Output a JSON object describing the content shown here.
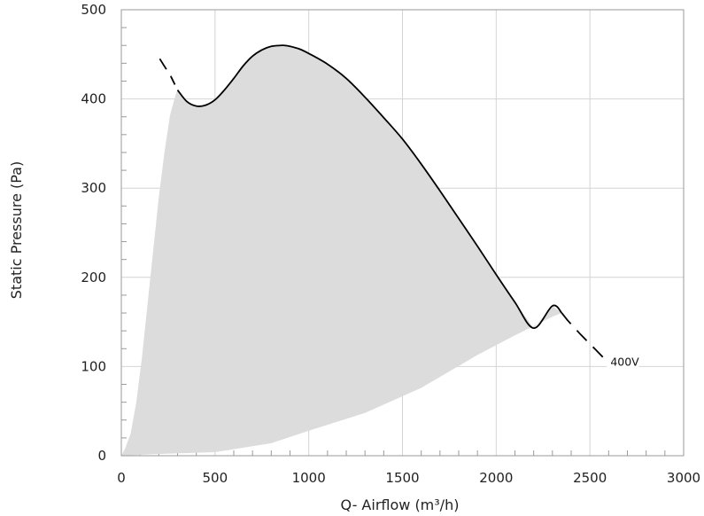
{
  "chart_data": {
    "type": "line",
    "xlabel": "Q- Airflow (m³/h)",
    "ylabel": "Static Pressure (Pa)",
    "xlim": [
      0,
      3000
    ],
    "ylim": [
      0,
      500
    ],
    "x_ticks": [
      "0",
      "500",
      "1000",
      "1500",
      "2000",
      "2500",
      "3000"
    ],
    "y_ticks": [
      "0",
      "100",
      "200",
      "300",
      "400",
      "500"
    ],
    "grid": true,
    "colors": {
      "curve": "#000000",
      "operating_area": "#dcdcdc",
      "grid": "#d4d4d4",
      "frame": "#999999"
    },
    "series": [
      {
        "name": "400V",
        "solid": {
          "x": [
            300,
            350,
            400,
            450,
            500,
            550,
            600,
            650,
            700,
            750,
            800,
            850,
            870,
            900,
            950,
            1000,
            1100,
            1200,
            1300,
            1400,
            1500,
            1600,
            1700,
            1800,
            1900,
            2000,
            2100,
            2200,
            2300,
            2350
          ],
          "y": [
            410,
            397,
            392,
            393,
            399,
            410,
            423,
            437,
            448,
            455,
            459,
            460,
            460,
            459,
            456,
            451,
            439,
            423,
            402,
            379,
            355,
            327,
            297,
            266,
            235,
            203,
            172,
            143,
            171,
            160
          ]
        },
        "dashed_left": {
          "x": [
            205,
            265
          ],
          "y": [
            445,
            425
          ]
        },
        "dashed_right": {
          "x": [
            2380,
            2450,
            2530,
            2590
          ],
          "y": [
            152,
            136,
            119,
            106
          ]
        }
      }
    ],
    "operating_area": {
      "upper": {
        "x": [
          0,
          20,
          50,
          80,
          110,
          140,
          170,
          200,
          230,
          260,
          290,
          300
        ],
        "y": [
          0,
          8,
          25,
          60,
          110,
          170,
          230,
          290,
          340,
          382,
          405,
          410
        ]
      },
      "lower": {
        "x": [
          0,
          200,
          500,
          800,
          1000,
          1300,
          1600,
          1900,
          2100,
          2300,
          2350
        ],
        "y": [
          0,
          2,
          4,
          14,
          28,
          48,
          76,
          113,
          135,
          156,
          160
        ]
      }
    }
  }
}
